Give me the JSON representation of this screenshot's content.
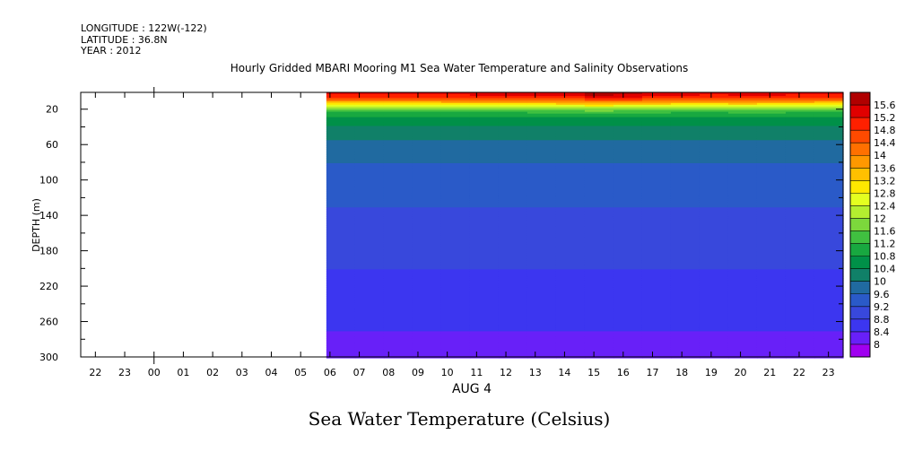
{
  "header": {
    "longitude": "LONGITUDE : 122W(-122)",
    "latitude": "LATITUDE : 36.8N",
    "year": "YEAR : 2012"
  },
  "chart_data": {
    "type": "heatmap",
    "title": "Hourly Gridded MBARI Mooring M1 Sea Water Temperature and Salinity Observations",
    "bottom_title": "Sea Water Temperature (Celsius)",
    "xlabel": "AUG  4",
    "ylabel": "DEPTH (m)",
    "x_ticks": [
      "22",
      "23",
      "00",
      "01",
      "02",
      "03",
      "04",
      "05",
      "06",
      "07",
      "08",
      "09",
      "10",
      "11",
      "12",
      "13",
      "14",
      "15",
      "16",
      "17",
      "18",
      "19",
      "20",
      "21",
      "22",
      "23"
    ],
    "y_ticks": [
      20,
      60,
      100,
      140,
      180,
      220,
      260,
      300
    ],
    "ylim": [
      300,
      1
    ],
    "data_start_hour": "06",
    "data_end_hour": "23",
    "colorbar_levels": [
      "15.6",
      "15.2",
      "14.8",
      "14.4",
      "14",
      "13.6",
      "13.2",
      "12.8",
      "12.4",
      "12",
      "11.6",
      "11.2",
      "10.8",
      "10.4",
      "10",
      "9.6",
      "9.2",
      "8.8",
      "8.4",
      "8"
    ],
    "colorbar_colors": [
      "#b00000",
      "#e00000",
      "#ff2000",
      "#ff4a00",
      "#ff7000",
      "#ff9800",
      "#ffc000",
      "#ffe800",
      "#e4ff20",
      "#b4ee30",
      "#7cd83c",
      "#40c040",
      "#18a840",
      "#009048",
      "#108068",
      "#206aa0",
      "#2a5ac8",
      "#3848dc",
      "#3c36f0",
      "#6820f8",
      "#a000f0"
    ],
    "depths": [
      1,
      5,
      10,
      14,
      18,
      25,
      35,
      50,
      65,
      80,
      100,
      125,
      150,
      180,
      210,
      240,
      265,
      285,
      300
    ],
    "temperature_profile": [
      15.3,
      15.0,
      14.1,
      13.0,
      12.0,
      11.0,
      10.5,
      10.1,
      9.8,
      9.6,
      9.45,
      9.25,
      9.05,
      8.9,
      8.75,
      8.6,
      8.45,
      8.3,
      8.2
    ],
    "hourly_surface_offset": [
      0.0,
      0.0,
      0.0,
      0.05,
      0.1,
      0.15,
      0.2,
      0.3,
      0.4,
      0.7,
      0.6,
      0.4,
      0.2,
      0.1,
      0.4,
      0.3,
      0.1,
      0.0
    ]
  }
}
